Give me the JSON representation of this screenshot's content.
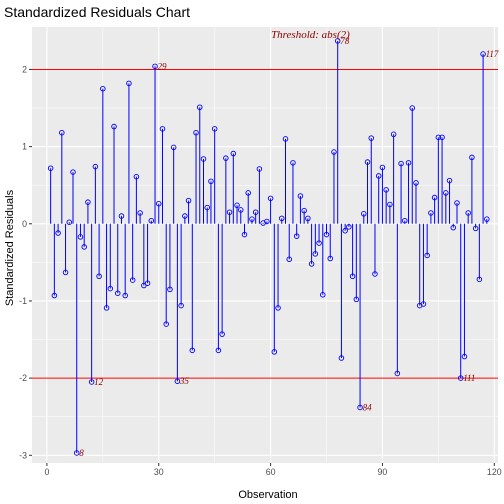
{
  "chart_data": {
    "type": "scatter",
    "title": "Standardized Residuals Chart",
    "xlabel": "Observation",
    "ylabel": "Standardized Residuals",
    "xlim": [
      -4,
      121
    ],
    "ylim": [
      -3.1,
      2.55
    ],
    "xticks": [
      0,
      30,
      60,
      90,
      120
    ],
    "yticks": [
      -3,
      -2,
      -1,
      0,
      1,
      2
    ],
    "grid": true,
    "legend": "none",
    "threshold": 2,
    "threshold_label": "Threshold: abs(2)",
    "colors": {
      "points": "#0000ff",
      "threshold": "#ff0000",
      "labels": "#8b0000",
      "panel": "#ebebeb",
      "grid": "#ffffff"
    },
    "x": [
      1,
      2,
      3,
      4,
      5,
      6,
      7,
      8,
      9,
      10,
      11,
      12,
      13,
      14,
      15,
      16,
      17,
      18,
      19,
      20,
      21,
      22,
      23,
      24,
      25,
      26,
      27,
      28,
      29,
      30,
      31,
      32,
      33,
      34,
      35,
      36,
      37,
      38,
      39,
      40,
      41,
      42,
      43,
      44,
      45,
      46,
      47,
      48,
      49,
      50,
      51,
      52,
      53,
      54,
      55,
      56,
      57,
      58,
      59,
      60,
      61,
      62,
      63,
      64,
      65,
      66,
      67,
      68,
      69,
      70,
      71,
      72,
      73,
      74,
      75,
      76,
      77,
      78,
      79,
      80,
      81,
      82,
      83,
      84,
      85,
      86,
      87,
      88,
      89,
      90,
      91,
      92,
      93,
      94,
      95,
      96,
      97,
      98,
      99,
      100,
      101,
      102,
      103,
      104,
      105,
      106,
      107,
      108,
      109,
      110,
      111,
      112,
      113,
      114,
      115,
      116,
      117,
      118
    ],
    "y": [
      0.72,
      -0.93,
      -0.12,
      1.18,
      -0.63,
      0.02,
      0.67,
      -2.97,
      -0.17,
      -0.3,
      0.28,
      -2.05,
      0.74,
      -0.68,
      1.75,
      -1.09,
      -0.84,
      1.26,
      -0.9,
      0.1,
      -0.93,
      1.82,
      -0.73,
      0.61,
      0.14,
      -0.8,
      -0.77,
      0.04,
      2.04,
      0.26,
      1.23,
      -1.3,
      -0.85,
      0.99,
      -2.04,
      -1.06,
      0.1,
      0.3,
      -1.64,
      1.18,
      1.51,
      0.84,
      0.21,
      0.55,
      1.23,
      -1.64,
      -1.43,
      0.85,
      0.15,
      0.91,
      0.24,
      0.18,
      -0.14,
      0.4,
      0.06,
      0.15,
      0.71,
      0.01,
      0.03,
      0.33,
      -1.66,
      -1.09,
      0.07,
      1.1,
      -0.46,
      0.79,
      -0.16,
      0.36,
      0.17,
      0.07,
      -0.52,
      -0.39,
      -0.25,
      -0.92,
      -0.14,
      -0.45,
      0.93,
      2.37,
      -1.74,
      -0.09,
      -0.04,
      -0.68,
      -0.98,
      -2.38,
      0.13,
      0.8,
      1.11,
      -0.65,
      0.62,
      0.73,
      0.44,
      0.25,
      1.16,
      -1.94,
      0.78,
      0.04,
      0.79,
      1.5,
      0.53,
      -1.06,
      -1.04,
      -0.41,
      0.14,
      0.34,
      1.12,
      1.12,
      0.4,
      0.56,
      -0.05,
      0.27,
      -2.0,
      -1.72,
      0.14,
      0.86,
      -0.06,
      -0.72,
      2.2,
      0.06
    ],
    "annotations": [
      {
        "label": "8",
        "x": 8,
        "y": -2.97
      },
      {
        "label": "12",
        "x": 12,
        "y": -2.05
      },
      {
        "label": "29",
        "x": 29,
        "y": 2.04
      },
      {
        "label": "35",
        "x": 35,
        "y": -2.04
      },
      {
        "label": "78",
        "x": 78,
        "y": 2.37
      },
      {
        "label": "84",
        "x": 84,
        "y": -2.38
      },
      {
        "label": "111",
        "x": 111,
        "y": -2.0
      },
      {
        "label": "117",
        "x": 117,
        "y": 2.2
      }
    ]
  }
}
